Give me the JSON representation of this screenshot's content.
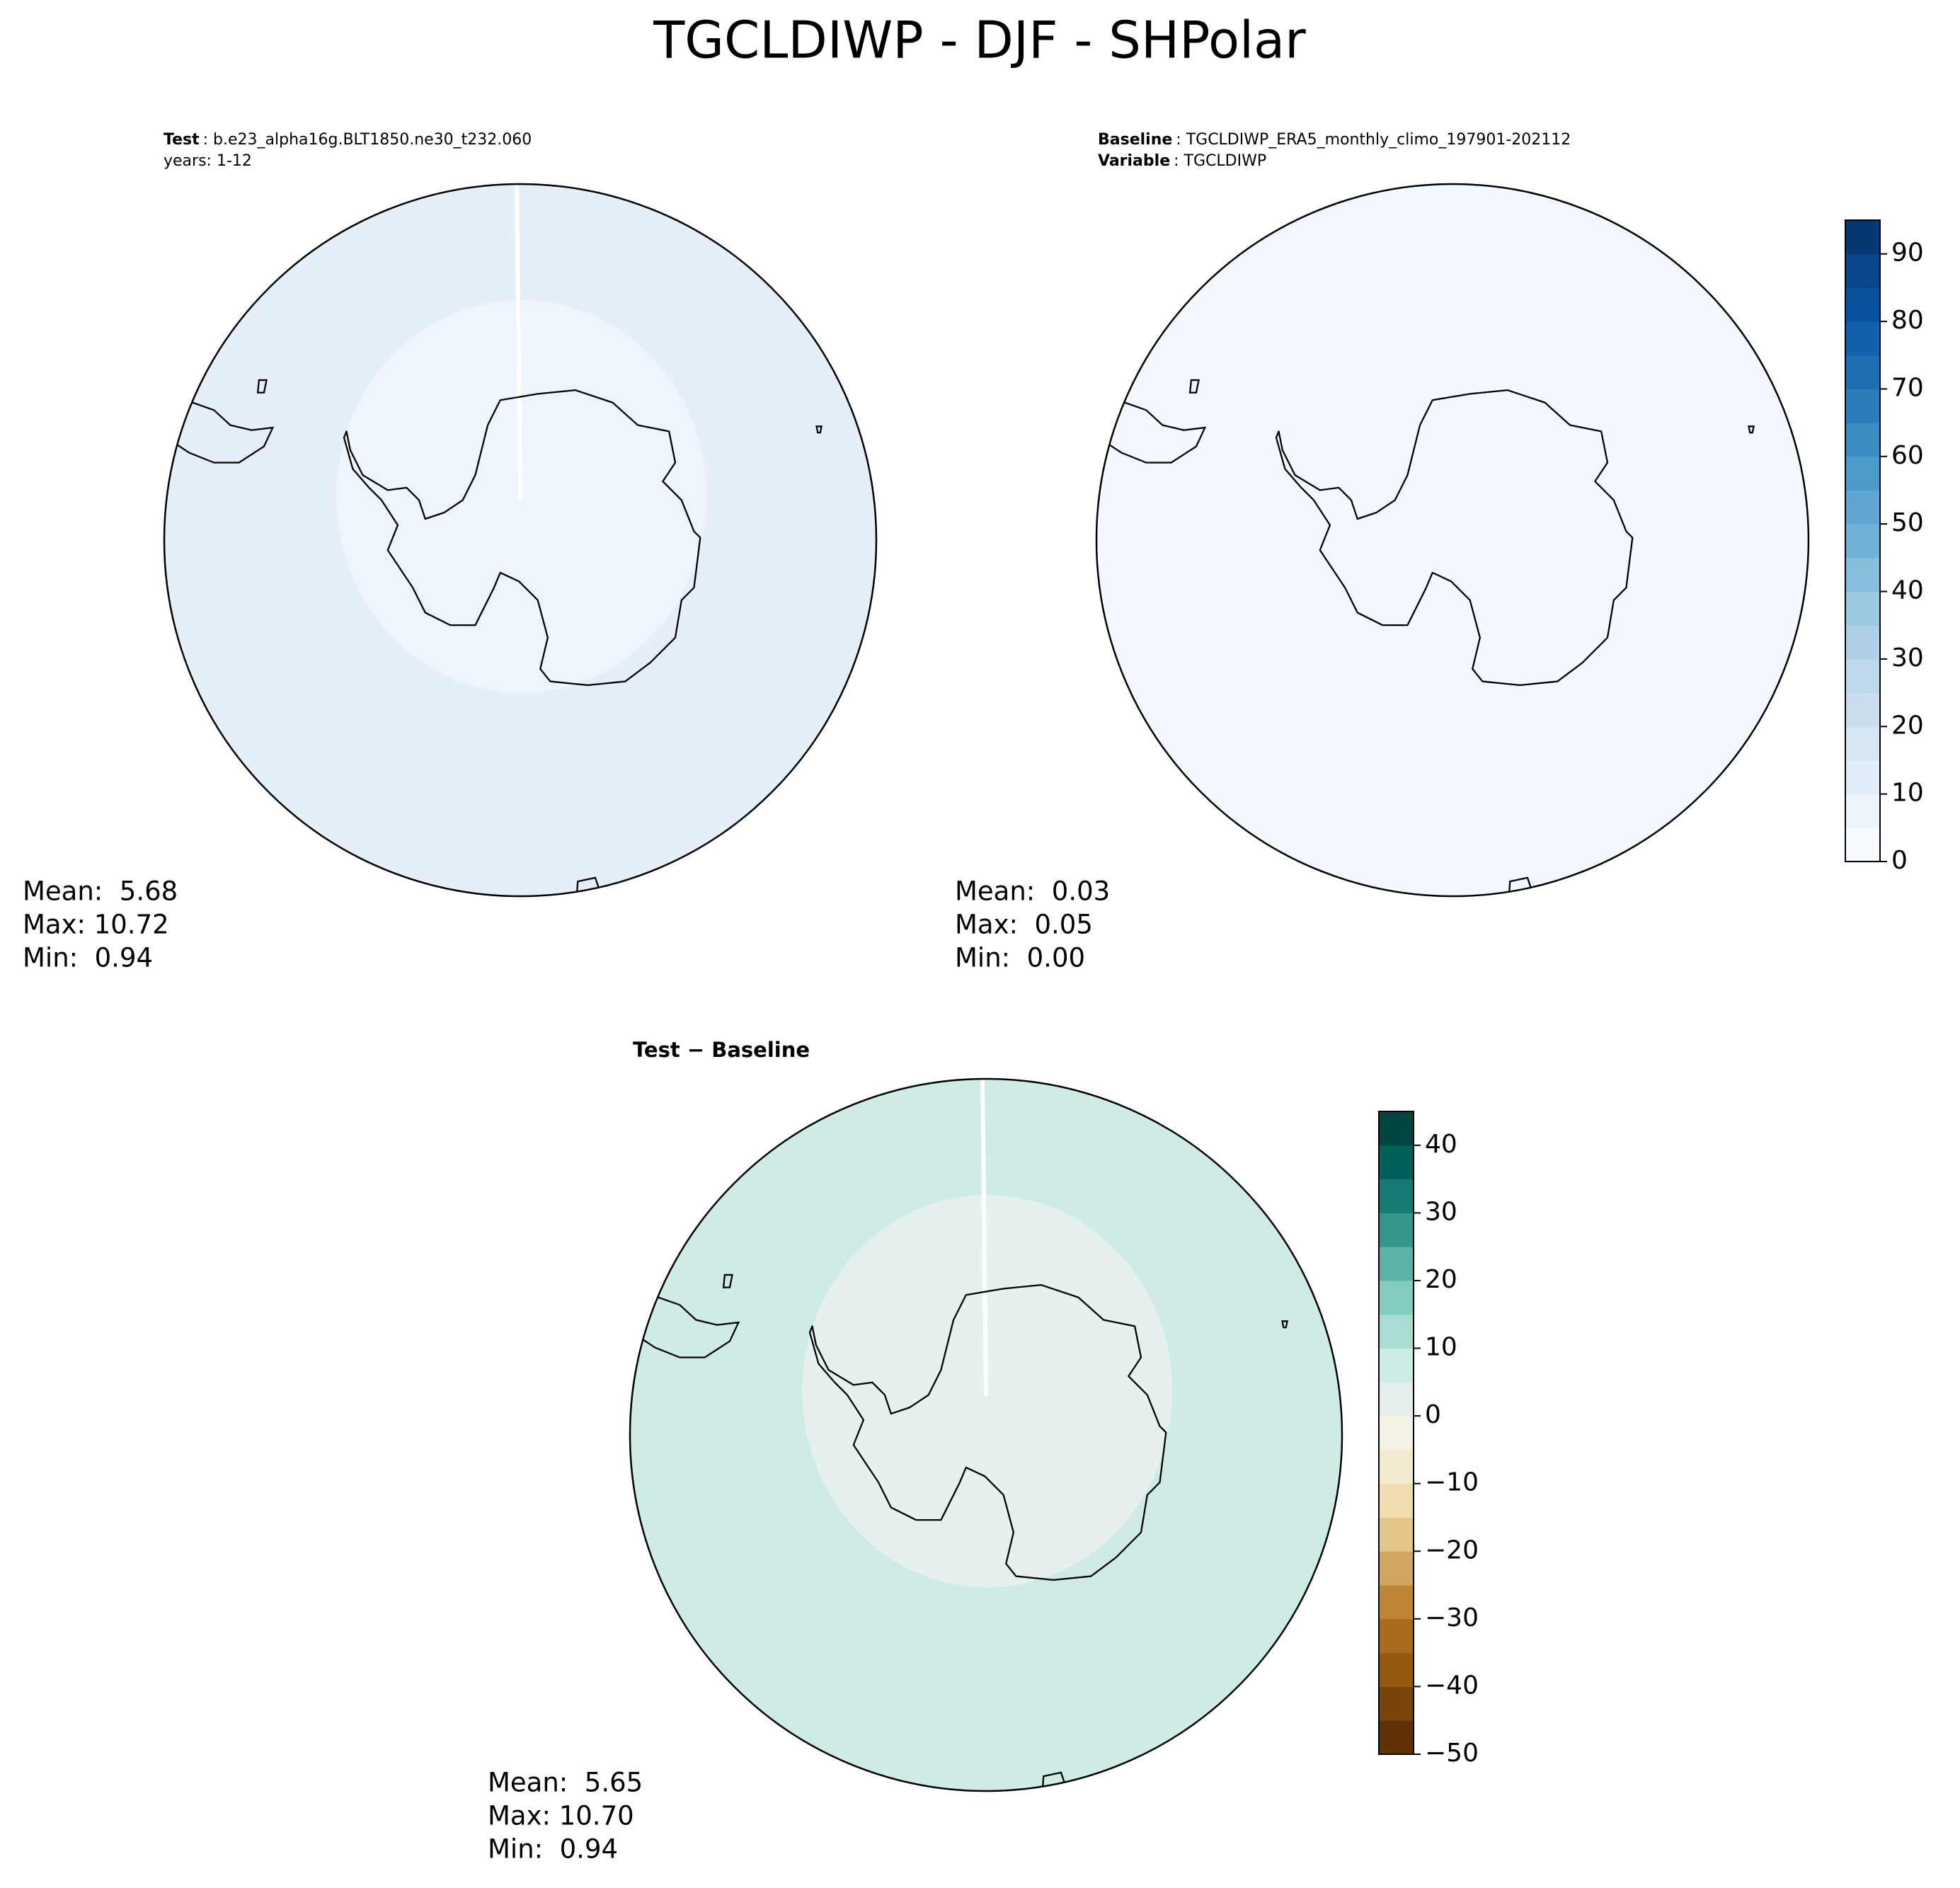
{
  "title": "TGCLDIWP - DJF - SHPolar",
  "panels": [
    {
      "header": [
        {
          "label": "Test",
          "text": ": b.e23_alpha16g.BLT1850.ne30_t232.060"
        },
        {
          "text": "years: 1-12"
        }
      ],
      "stats": [
        "Mean:  5.68",
        "Max: 10.72",
        "Min:  0.94"
      ],
      "ocean": "#e4eff9",
      "inner": "#eef5fc"
    },
    {
      "header": [
        {
          "label": "Baseline",
          "text": ": TGCLDIWP_ERA5_monthly_climo_197901-202112"
        },
        {
          "label": "Variable",
          "text": ": TGCLDIWP"
        }
      ],
      "stats": [
        "Mean:  0.03",
        "Max:  0.05",
        "Min:  0.00"
      ],
      "ocean": "#f3f8fe",
      "inner": "#f3f8fe"
    },
    {
      "header": [
        {
          "label": "Test − Baseline"
        }
      ],
      "stats": [
        "Mean:  5.65",
        "Max: 10.70",
        "Min:  0.94"
      ],
      "ocean": "#cfebe6",
      "inner": "#e6f0ef"
    }
  ],
  "colorbars": [
    {
      "levels": [
        0,
        5,
        10,
        15,
        20,
        25,
        30,
        35,
        40,
        45,
        50,
        55,
        60,
        65,
        70,
        75,
        80,
        85,
        90,
        95
      ],
      "colors": [
        "#f7fbff",
        "#ecf4fc",
        "#e1edf8",
        "#d6e6f4",
        "#cadef0",
        "#bed8ec",
        "#afd1e7",
        "#9cc9e1",
        "#88bedc",
        "#72b2d8",
        "#5fa6d1",
        "#4d99ca",
        "#3b8bc2",
        "#2c7cba",
        "#1f6eb3",
        "#1461a9",
        "#09539d",
        "#08458a",
        "#083776"
      ],
      "ticks": [
        0,
        10,
        20,
        30,
        40,
        50,
        60,
        70,
        80,
        90
      ]
    },
    {
      "levels": [
        -50,
        -45,
        -40,
        -35,
        -30,
        -25,
        -20,
        -15,
        -10,
        -5,
        0,
        5,
        10,
        15,
        20,
        25,
        30,
        35,
        40,
        45
      ],
      "colors": [
        "#5e3205",
        "#7a4508",
        "#95580d",
        "#ab6b1c",
        "#c08534",
        "#d2a65f",
        "#e4c68a",
        "#efdcaf",
        "#f4ead0",
        "#f4f0e4",
        "#e5f0ee",
        "#cbebe5",
        "#a9ddd4",
        "#82cdbf",
        "#5bb3a7",
        "#34968b",
        "#157a72",
        "#02605a",
        "#01473f"
      ],
      "ticks": [
        {
          "value": -50,
          "label": "−50"
        },
        {
          "value": -40,
          "label": "−40"
        },
        {
          "value": -30,
          "label": "−30"
        },
        {
          "value": -20,
          "label": "−20"
        },
        {
          "value": -10,
          "label": "−10"
        },
        0,
        10,
        20,
        30,
        40
      ]
    }
  ]
}
